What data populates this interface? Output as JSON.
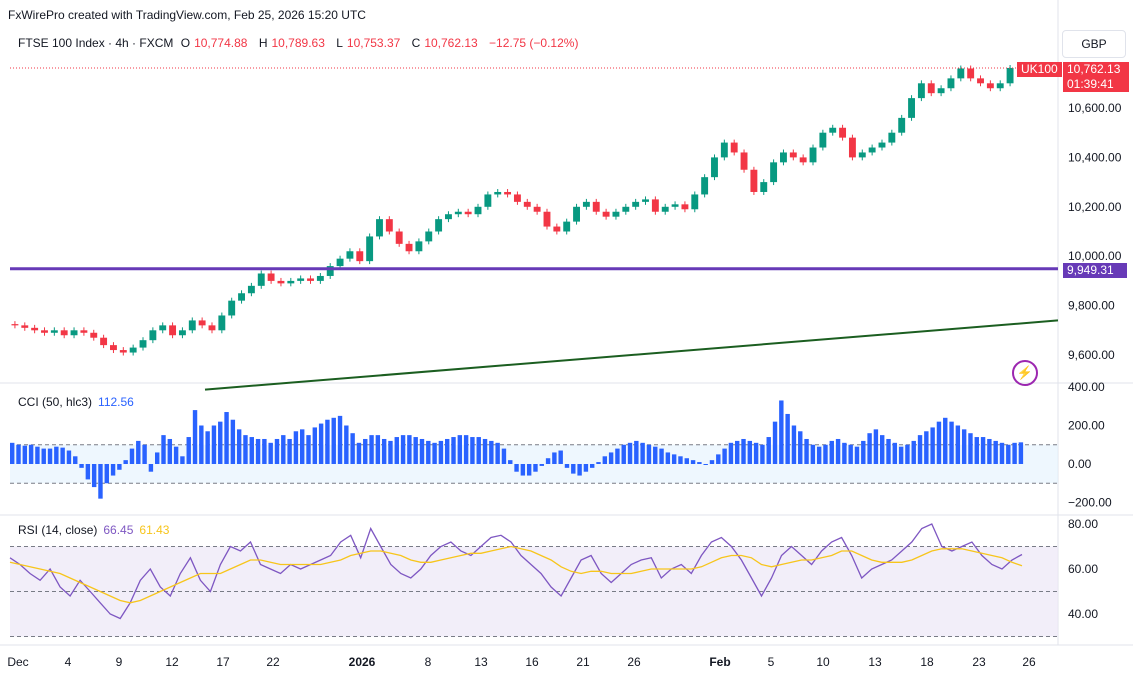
{
  "header": {
    "credit": "FxWirePro created with TradingView.com, Feb 25, 2026 15:20 UTC"
  },
  "symbol": {
    "name": "FTSE 100 Index · 4h · FXCM",
    "o_label": "O",
    "o_value": "10,774.88",
    "h_label": "H",
    "h_value": "10,789.63",
    "l_label": "L",
    "l_value": "10,753.37",
    "c_label": "C",
    "c_value": "10,762.13",
    "change": "−12.75 (−0.12%)"
  },
  "currency": "GBP",
  "price_tags": {
    "ticker": "UK100",
    "last_price": "10,762.13",
    "countdown": "01:39:41",
    "hline_price": "9,949.31"
  },
  "colors": {
    "up": "#089981",
    "down": "#f23645",
    "hline": "#673ab7",
    "trend": "#1b5e20",
    "cci": "#2962ff",
    "rsi": "#7e57c2",
    "rsi_ma": "#f7c51b"
  },
  "cci": {
    "label": "CCI (50, hlc3)",
    "value": "112.56"
  },
  "rsi": {
    "label": "RSI (14, close)",
    "value": "66.45",
    "ma_value": "61.43"
  },
  "chart_data": [
    {
      "type": "candlestick",
      "title": "FTSE 100 Index · 4h · FXCM",
      "y_ticks": [
        "10,600.00",
        "10,400.00",
        "10,200.00",
        "10,000.00",
        "9,800.00",
        "9,600.00"
      ],
      "ylim": [
        9500,
        10850
      ],
      "x_ticks": [
        "Dec",
        "4",
        "9",
        "12",
        "17",
        "22",
        "2026",
        "8",
        "13",
        "16",
        "21",
        "26",
        "Feb",
        "5",
        "10",
        "13",
        "18",
        "23",
        "26"
      ],
      "horizontal_line": 9949.31,
      "trendline": {
        "from": 9460,
        "to": 9740
      },
      "close_path": [
        9720,
        9710,
        9700,
        9690,
        9700,
        9680,
        9700,
        9690,
        9670,
        9640,
        9620,
        9610,
        9630,
        9660,
        9700,
        9720,
        9680,
        9700,
        9740,
        9720,
        9700,
        9760,
        9820,
        9850,
        9880,
        9930,
        9900,
        9890,
        9900,
        9910,
        9900,
        9920,
        9960,
        9990,
        10020,
        9980,
        10080,
        10150,
        10100,
        10050,
        10020,
        10060,
        10100,
        10150,
        10170,
        10180,
        10170,
        10200,
        10250,
        10260,
        10250,
        10220,
        10200,
        10180,
        10120,
        10100,
        10140,
        10200,
        10220,
        10180,
        10160,
        10180,
        10200,
        10220,
        10230,
        10180,
        10200,
        10210,
        10190,
        10250,
        10320,
        10400,
        10460,
        10420,
        10350,
        10260,
        10300,
        10380,
        10420,
        10400,
        10380,
        10440,
        10500,
        10520,
        10480,
        10400,
        10420,
        10440,
        10460,
        10500,
        10560,
        10640,
        10700,
        10660,
        10680,
        10720,
        10760,
        10720,
        10700,
        10680,
        10700,
        10762.13
      ]
    },
    {
      "type": "bar",
      "title": "CCI (50, hlc3)",
      "y_ticks": [
        "400.00",
        "200.00",
        "0.00",
        "−200.00"
      ],
      "ylim": [
        -250,
        420
      ],
      "bands": [
        100,
        -100
      ],
      "values": [
        110,
        100,
        95,
        100,
        90,
        80,
        80,
        90,
        85,
        70,
        40,
        -20,
        -80,
        -120,
        -180,
        -100,
        -60,
        -30,
        20,
        80,
        120,
        100,
        -40,
        60,
        150,
        130,
        90,
        40,
        140,
        280,
        200,
        170,
        200,
        220,
        270,
        230,
        180,
        150,
        140,
        130,
        130,
        110,
        130,
        150,
        130,
        170,
        180,
        150,
        190,
        210,
        230,
        240,
        250,
        200,
        160,
        110,
        130,
        150,
        150,
        130,
        120,
        140,
        150,
        150,
        140,
        130,
        120,
        110,
        120,
        130,
        140,
        150,
        150,
        140,
        140,
        130,
        120,
        110,
        80,
        20,
        -40,
        -60,
        -60,
        -40,
        -10,
        30,
        60,
        70,
        -20,
        -50,
        -60,
        -40,
        -20,
        10,
        40,
        60,
        80,
        100,
        110,
        120,
        110,
        100,
        90,
        80,
        60,
        50,
        40,
        30,
        20,
        10,
        0,
        20,
        50,
        80,
        110,
        120,
        130,
        120,
        110,
        100,
        140,
        220,
        330,
        260,
        200,
        170,
        130,
        100,
        90,
        100,
        120,
        130,
        110,
        100,
        90,
        120,
        160,
        180,
        150,
        130,
        110,
        90,
        100,
        120,
        150,
        170,
        190,
        220,
        240,
        220,
        200,
        180,
        160,
        140,
        140,
        130,
        120,
        110,
        100,
        110,
        112.56
      ]
    },
    {
      "type": "line",
      "title": "RSI (14, close)",
      "y_ticks": [
        "80.00",
        "60.00",
        "40.00"
      ],
      "ylim": [
        25,
        85
      ],
      "bands": [
        70,
        50,
        30
      ],
      "series": [
        {
          "name": "RSI",
          "values": [
            65,
            62,
            58,
            55,
            60,
            52,
            48,
            55,
            50,
            45,
            40,
            38,
            45,
            55,
            60,
            52,
            48,
            58,
            65,
            55,
            50,
            62,
            70,
            68,
            72,
            62,
            60,
            58,
            62,
            60,
            62,
            64,
            66,
            72,
            75,
            65,
            78,
            70,
            62,
            58,
            56,
            60,
            66,
            70,
            72,
            68,
            66,
            70,
            74,
            75,
            72,
            66,
            62,
            58,
            52,
            48,
            56,
            64,
            66,
            58,
            54,
            58,
            62,
            64,
            65,
            56,
            60,
            62,
            58,
            66,
            72,
            74,
            70,
            64,
            56,
            48,
            56,
            66,
            70,
            66,
            62,
            68,
            72,
            74,
            66,
            56,
            60,
            62,
            64,
            68,
            72,
            78,
            80,
            70,
            68,
            70,
            72,
            66,
            62,
            60,
            64,
            66.45
          ]
        },
        {
          "name": "MA",
          "values": [
            63,
            62,
            61,
            60,
            59,
            58,
            56,
            54,
            52,
            50,
            48,
            46,
            45,
            46,
            48,
            50,
            52,
            54,
            56,
            58,
            58,
            58,
            60,
            62,
            64,
            64,
            63,
            62,
            62,
            62,
            62,
            62,
            63,
            64,
            66,
            67,
            68,
            68,
            67,
            66,
            64,
            63,
            63,
            64,
            65,
            66,
            67,
            67,
            68,
            69,
            70,
            69,
            68,
            66,
            64,
            61,
            59,
            58,
            59,
            59,
            58,
            58,
            58,
            59,
            60,
            60,
            60,
            60,
            60,
            61,
            63,
            65,
            66,
            66,
            65,
            62,
            61,
            62,
            63,
            64,
            64,
            65,
            66,
            68,
            68,
            66,
            64,
            63,
            63,
            63,
            64,
            66,
            68,
            69,
            69,
            69,
            68,
            67,
            66,
            65,
            63,
            61.43
          ]
        }
      ]
    }
  ]
}
